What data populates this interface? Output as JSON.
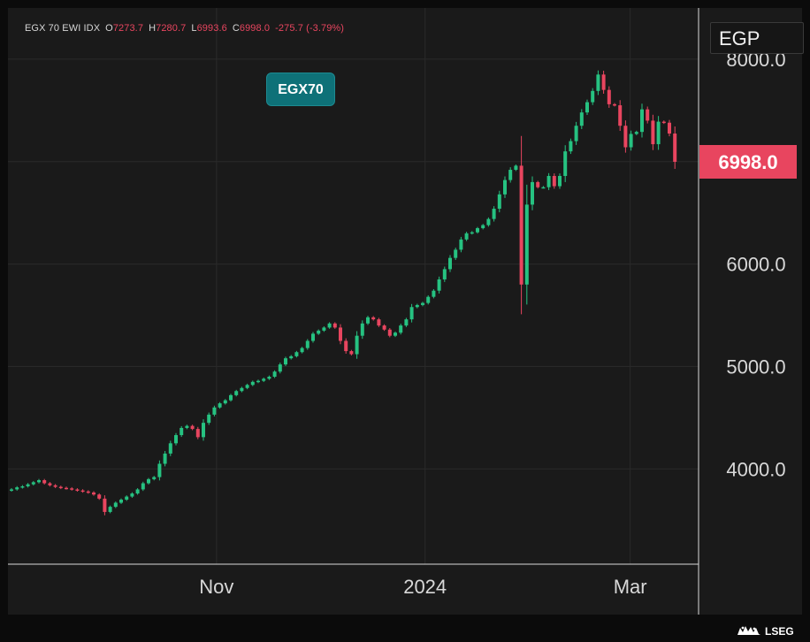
{
  "header": {
    "instrument": "EGX 70 EWI IDX",
    "open_label": "O",
    "open": "7273.7",
    "high_label": "H",
    "high": "7280.7",
    "low_label": "L",
    "low": "6993.6",
    "close_label": "C",
    "close": "6998.0",
    "change": "-275.7",
    "change_pct": "(-3.79%)"
  },
  "currency": "EGP",
  "badge": "EGX70",
  "brand": "LSEG",
  "colors": {
    "up": "#26c281",
    "down": "#e8455f",
    "price_tag": "#e8455f",
    "badge": "#0e7178",
    "background": "#1a1a1a",
    "grid": "#2a2a2a"
  },
  "chart_data": {
    "type": "candlestick",
    "title": "",
    "xlabel": "",
    "ylabel": "",
    "ylim": [
      3070,
      8500
    ],
    "yticks": [
      4000,
      5000,
      6000,
      7000,
      8000
    ],
    "ytick_labels": [
      "4000.0",
      "5000.0",
      "6000.0",
      "7000.0",
      "8000.0"
    ],
    "xtick_labels": [
      "Nov",
      "2024",
      "Mar"
    ],
    "last_price": "6998.0",
    "x_start": "2023-09-01",
    "series": [
      {
        "close": [
          3800,
          3820,
          3830,
          3850,
          3870,
          3890,
          3860,
          3840,
          3825,
          3815,
          3810,
          3800,
          3790,
          3780,
          3770,
          3750,
          3710,
          3580,
          3630,
          3670,
          3700,
          3730,
          3760,
          3800,
          3860,
          3900,
          3920,
          4050,
          4150,
          4250,
          4330,
          4400,
          4420,
          4390,
          4310,
          4450,
          4530,
          4600,
          4640,
          4670,
          4720,
          4760,
          4790,
          4820,
          4850,
          4860,
          4880,
          4900,
          4950,
          5020,
          5080,
          5100,
          5140,
          5180,
          5250,
          5320,
          5350,
          5380,
          5420,
          5380,
          5250,
          5150,
          5120,
          5300,
          5420,
          5480,
          5460,
          5400,
          5360,
          5300,
          5330,
          5400,
          5460,
          5580,
          5600,
          5620,
          5680,
          5740,
          5850,
          5950,
          6060,
          6140,
          6240,
          6300,
          6310,
          6350,
          6380,
          6440,
          6540,
          6680,
          6820,
          6920,
          6960,
          5800,
          6580,
          6800,
          6750,
          6750,
          6860,
          6760,
          6860,
          7100,
          7200,
          7350,
          7480,
          7580,
          7690,
          7850,
          7700,
          7560,
          7550,
          7350,
          7140,
          7270,
          7290,
          7510,
          7400,
          7170,
          7390,
          7380,
          7274,
          6998
        ]
      }
    ]
  }
}
